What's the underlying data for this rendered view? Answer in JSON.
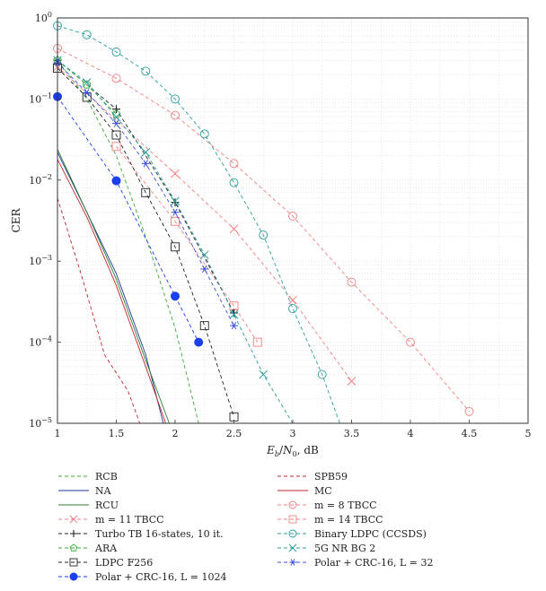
{
  "chart_data": {
    "type": "line",
    "ylabel": "CER",
    "xlabel": "E_b/N_0, dB",
    "xlim": [
      1,
      5
    ],
    "ylim": [
      1e-05,
      1
    ],
    "yscale": "log",
    "grid": true,
    "legend_position": "bottom",
    "x_ticks": [
      "1",
      "1.5",
      "2",
      "2.5",
      "3",
      "3.5",
      "4",
      "4.5",
      "5"
    ],
    "y_ticks": [
      "10^-5",
      "10^-4",
      "10^-3",
      "10^-2",
      "10^-1",
      "10^0"
    ],
    "series": [
      {
        "name": "RCB",
        "color": "#3aaa35",
        "dash": "4,3",
        "marker": "none",
        "x": [
          1,
          1.25,
          1.5,
          1.75,
          2,
          2.2
        ],
        "y": [
          0.3,
          0.1,
          0.02,
          0.002,
          0.00015,
          1e-05
        ]
      },
      {
        "name": "SPB59",
        "color": "#c1272d",
        "dash": "4,3",
        "marker": "none",
        "x": [
          1,
          1.2,
          1.4,
          1.6,
          1.7
        ],
        "y": [
          0.006,
          0.0007,
          7e-05,
          2.5e-05,
          1e-05
        ]
      },
      {
        "name": "NA",
        "color": "#1f3a93",
        "dash": "",
        "marker": "none",
        "x": [
          1,
          1.25,
          1.5,
          1.75,
          1.9
        ],
        "y": [
          0.022,
          0.004,
          0.0007,
          7e-05,
          1e-05
        ]
      },
      {
        "name": "MC",
        "color": "#c1272d",
        "dash": "",
        "marker": "none",
        "x": [
          1,
          1.25,
          1.5,
          1.75,
          1.92
        ],
        "y": [
          0.018,
          0.0035,
          0.0005,
          5e-05,
          1e-05
        ]
      },
      {
        "name": "RCU",
        "color": "#2e7d32",
        "dash": "",
        "marker": "none",
        "x": [
          1,
          1.25,
          1.5,
          1.75,
          1.95
        ],
        "y": [
          0.024,
          0.004,
          0.0006,
          6e-05,
          1e-05
        ]
      },
      {
        "name": "m = 8 TBCC",
        "color": "#f08080",
        "dash": "4,3",
        "marker": "circle",
        "x": [
          1,
          1.5,
          2,
          2.5,
          3,
          3.5,
          4,
          4.5
        ],
        "y": [
          0.42,
          0.18,
          0.063,
          0.016,
          0.0036,
          0.00055,
          0.0001,
          1.4e-05
        ]
      },
      {
        "name": "m = 11 TBCC",
        "color": "#f08080",
        "dash": "4,3",
        "marker": "x",
        "x": [
          1,
          2,
          2.5,
          3,
          3.5
        ],
        "y": [
          0.25,
          0.012,
          0.0025,
          0.00033,
          3.3e-05
        ]
      },
      {
        "name": "m = 14 TBCC",
        "color": "#f08080",
        "dash": "4,3",
        "marker": "square",
        "x": [
          1.5,
          2,
          2.5,
          2.7
        ],
        "y": [
          0.026,
          0.0031,
          0.00028,
          0.0001
        ]
      },
      {
        "name": "Turbo TB 16-states, 10 it.",
        "color": "#222222",
        "dash": "4,3",
        "marker": "plus",
        "x": [
          1,
          1.5,
          2,
          2.5
        ],
        "y": [
          0.3,
          0.075,
          0.0053,
          0.00023
        ]
      },
      {
        "name": "Binary LDPC (CCSDS)",
        "color": "#2a9d9d",
        "dash": "4,3",
        "marker": "circle",
        "x": [
          1,
          1.25,
          1.5,
          1.75,
          2,
          2.25,
          2.5,
          2.75,
          3,
          3.25,
          3.4
        ],
        "y": [
          0.8,
          0.62,
          0.38,
          0.22,
          0.1,
          0.037,
          0.0093,
          0.0021,
          0.00026,
          4e-05,
          1e-05
        ]
      },
      {
        "name": "ARA",
        "color": "#3aaa35",
        "dash": "4,3",
        "marker": "pentagon",
        "x": [
          1,
          1.25,
          1.5
        ],
        "y": [
          0.3,
          0.15,
          0.065
        ]
      },
      {
        "name": "5G NR BG 2",
        "color": "#2a9d9d",
        "dash": "4,3",
        "marker": "x",
        "x": [
          1,
          1.25,
          1.5,
          1.75,
          2,
          2.25,
          2.5,
          2.75,
          3
        ],
        "y": [
          0.3,
          0.16,
          0.06,
          0.022,
          0.0055,
          0.0012,
          0.00022,
          4e-05,
          1e-05
        ]
      },
      {
        "name": "LDPC F_256",
        "color": "#222222",
        "dash": "4,3",
        "marker": "square",
        "x": [
          1,
          1.25,
          1.5,
          1.75,
          2,
          2.25,
          2.5
        ],
        "y": [
          0.24,
          0.105,
          0.036,
          0.007,
          0.0015,
          0.00016,
          1.2e-05
        ]
      },
      {
        "name": "Polar + CRC-16, L = 32",
        "color": "#3b4dde",
        "dash": "4,3",
        "marker": "asterisk",
        "x": [
          1,
          1.25,
          1.5,
          1.75,
          2,
          2.25,
          2.5
        ],
        "y": [
          0.28,
          0.12,
          0.05,
          0.016,
          0.004,
          0.0008,
          0.00016
        ]
      },
      {
        "name": "Polar + CRC-16, L = 1024",
        "color": "#1a3ff0",
        "dash": "4,3",
        "marker": "dot",
        "x": [
          1,
          1.5,
          2,
          2.2
        ],
        "y": [
          0.107,
          0.0098,
          0.00037,
          0.0001
        ]
      }
    ]
  },
  "legend": {
    "left": [
      {
        "key": 0,
        "label": "RCB"
      },
      {
        "key": 2,
        "label": "NA"
      },
      {
        "key": 4,
        "label": "RCU"
      },
      {
        "key": 6,
        "label": "m = 11 TBCC"
      },
      {
        "key": 8,
        "label": "Turbo TB 16-states, 10 it."
      },
      {
        "key": 10,
        "label": "ARA"
      },
      {
        "key": 12,
        "label": "LDPC 𝔽256"
      },
      {
        "key": 14,
        "label": "Polar + CRC-16, L = 1024"
      }
    ],
    "right": [
      {
        "key": 1,
        "label": "SPB59"
      },
      {
        "key": 3,
        "label": "MC"
      },
      {
        "key": 5,
        "label": "m = 8 TBCC"
      },
      {
        "key": 7,
        "label": "m = 14 TBCC"
      },
      {
        "key": 9,
        "label": "Binary LDPC (CCSDS)"
      },
      {
        "key": 11,
        "label": "5G NR BG 2"
      },
      {
        "key": 13,
        "label": "Polar + CRC-16, L = 32"
      }
    ]
  }
}
